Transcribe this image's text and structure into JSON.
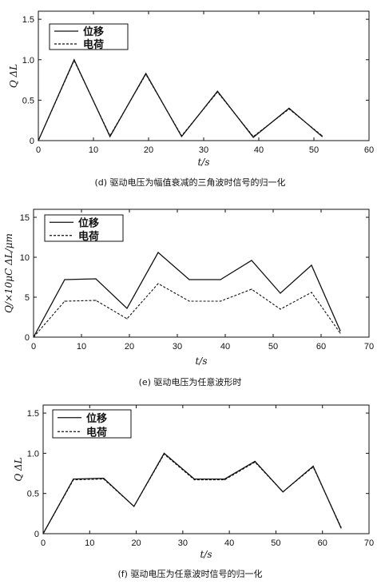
{
  "chart_data": [
    {
      "type": "line",
      "caption": "(d) 驱动电压为幅值衰减的三角波时信号的归一化",
      "xlabel": "t/s",
      "ylabel": "Q  ΔL",
      "xlim": [
        0,
        60
      ],
      "ylim": [
        0,
        1.6
      ],
      "x_ticks": [
        "0",
        "10",
        "20",
        "30",
        "40",
        "50",
        "60"
      ],
      "y_ticks": [
        "0",
        "0.5",
        "1.0",
        "1.5"
      ],
      "legend_position": "top-left",
      "series": [
        {
          "name": "位移",
          "style": "solid",
          "x": [
            0,
            6.5,
            13,
            19.5,
            26,
            32.5,
            39,
            45.5,
            51.5
          ],
          "y": [
            0,
            1.0,
            0.05,
            0.83,
            0.05,
            0.61,
            0.04,
            0.4,
            0.05
          ]
        },
        {
          "name": "电荷",
          "style": "dashed",
          "x": [
            0,
            6.5,
            13,
            19.5,
            26,
            32.5,
            39,
            45.5,
            51.5
          ],
          "y": [
            0,
            0.99,
            0.06,
            0.82,
            0.06,
            0.6,
            0.05,
            0.39,
            0.06
          ]
        }
      ]
    },
    {
      "type": "line",
      "caption": "(e) 驱动电压为任意波形时",
      "xlabel": "t/s",
      "ylabel": "Q/×10μC  ΔL/μm",
      "xlim": [
        0,
        70
      ],
      "ylim": [
        0,
        16
      ],
      "x_ticks": [
        "0",
        "10",
        "20",
        "30",
        "40",
        "50",
        "60",
        "70"
      ],
      "y_ticks": [
        "0",
        "5",
        "10",
        "15"
      ],
      "legend_position": "top-left",
      "series": [
        {
          "name": "位移",
          "style": "solid",
          "x": [
            0,
            6.5,
            13,
            19.5,
            26,
            32.5,
            39,
            45.5,
            51.5,
            58,
            64
          ],
          "y": [
            0,
            7.2,
            7.3,
            3.6,
            10.6,
            7.2,
            7.2,
            9.6,
            5.5,
            9.0,
            0.8
          ]
        },
        {
          "name": "电荷",
          "style": "dashed",
          "x": [
            0,
            6.5,
            13,
            19.5,
            26,
            32.5,
            39,
            45.5,
            51.5,
            58,
            64
          ],
          "y": [
            0,
            4.5,
            4.6,
            2.3,
            6.7,
            4.5,
            4.5,
            6.0,
            3.5,
            5.6,
            0.5
          ]
        }
      ]
    },
    {
      "type": "line",
      "caption": "(f) 驱动电压为任意波时信号的归一化",
      "xlabel": "t/s",
      "ylabel": "Q  ΔL",
      "xlim": [
        0,
        70
      ],
      "ylim": [
        0,
        1.6
      ],
      "x_ticks": [
        "0",
        "10",
        "20",
        "30",
        "40",
        "50",
        "60",
        "70"
      ],
      "y_ticks": [
        "0",
        "0.5",
        "1.0",
        "1.5"
      ],
      "legend_position": "top-left",
      "series": [
        {
          "name": "位移",
          "style": "solid",
          "x": [
            0,
            6.5,
            13,
            19.5,
            26,
            32.5,
            39,
            45.5,
            51.5,
            58,
            64
          ],
          "y": [
            0,
            0.68,
            0.69,
            0.34,
            1.0,
            0.68,
            0.68,
            0.9,
            0.52,
            0.84,
            0.07
          ]
        },
        {
          "name": "电荷",
          "style": "dashed",
          "x": [
            0,
            6.5,
            13,
            19.5,
            26,
            32.5,
            39,
            45.5,
            51.5,
            58,
            64
          ],
          "y": [
            0,
            0.67,
            0.68,
            0.34,
            0.99,
            0.67,
            0.67,
            0.89,
            0.52,
            0.83,
            0.08
          ]
        }
      ]
    }
  ]
}
